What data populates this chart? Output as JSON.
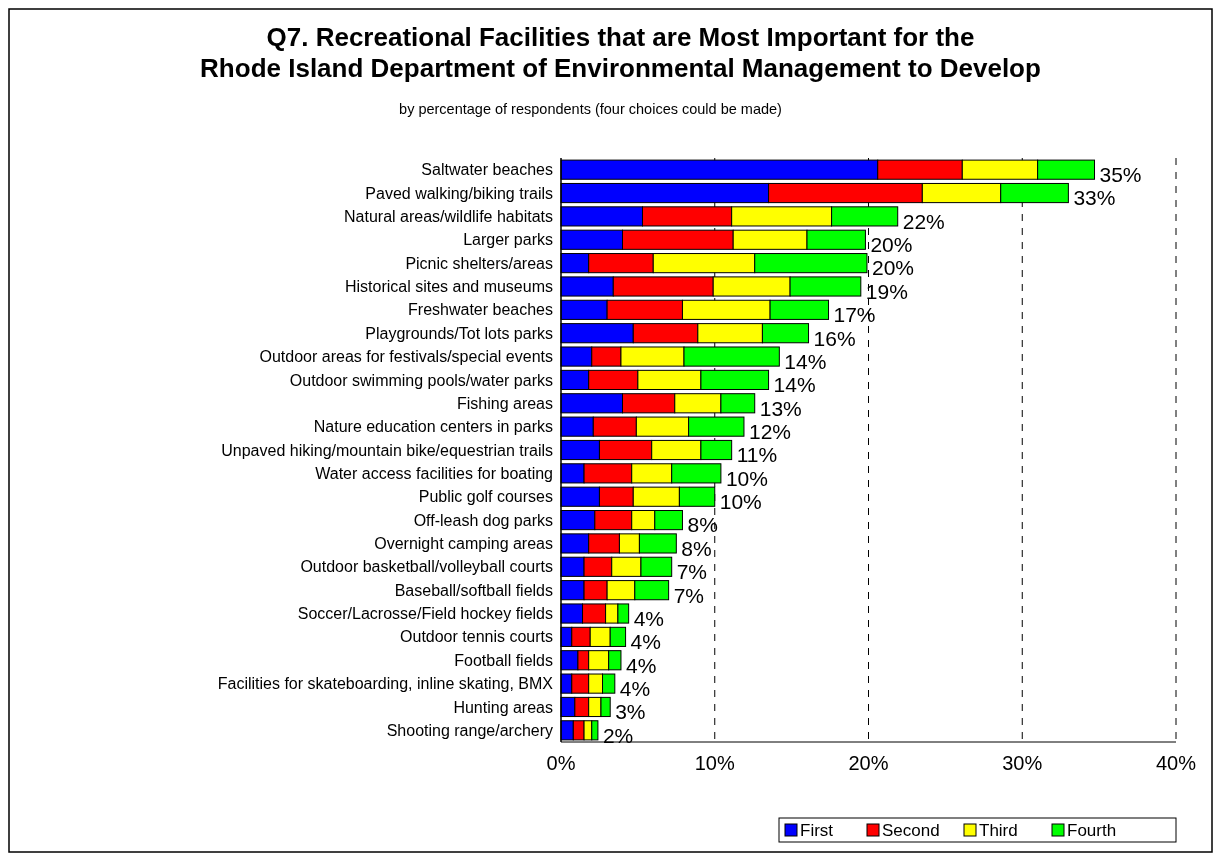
{
  "chart_data": {
    "type": "bar",
    "orientation": "horizontal",
    "stacked": true,
    "title": "Q7. Recreational Facilities that are Most Important for the Rhode Island Department of Environmental Management to Develop",
    "subtitle": "by percentage of respondents (four choices could be made)",
    "categories": [
      "Saltwater beaches",
      "Paved walking/biking trails",
      "Natural areas/wildlife habitats",
      "Larger parks",
      "Picnic shelters/areas",
      "Historical sites and museums",
      "Freshwater beaches",
      "Playgrounds/Tot lots parks",
      "Outdoor areas for festivals/special events",
      "Outdoor swimming pools/water parks",
      "Fishing areas",
      "Nature education centers in parks",
      "Unpaved hiking/mountain bike/equestrian trails",
      "Water access facilities for boating",
      "Public golf courses",
      "Off-leash dog parks",
      "Overnight camping areas",
      "Outdoor basketball/volleyball courts",
      "Baseball/softball fields",
      "Soccer/Lacrosse/Field hockey fields",
      "Outdoor tennis courts",
      "Football fields",
      "Facilities for skateboarding, inline skating, BMX",
      "Hunting areas",
      "Shooting range/archery"
    ],
    "series": [
      {
        "name": "First",
        "color": "#0000ff",
        "values": [
          20.6,
          13.5,
          5.3,
          4.0,
          1.8,
          3.4,
          3.0,
          4.7,
          2.0,
          1.8,
          4.0,
          2.1,
          2.5,
          1.5,
          2.5,
          2.2,
          1.8,
          1.5,
          1.5,
          1.4,
          0.7,
          1.1,
          0.7,
          0.9,
          0.8
        ]
      },
      {
        "name": "Second",
        "color": "#ff0000",
        "values": [
          5.5,
          10.0,
          5.8,
          7.2,
          4.2,
          6.5,
          4.9,
          4.2,
          1.9,
          3.2,
          3.4,
          2.8,
          3.4,
          3.1,
          2.2,
          2.4,
          2.0,
          1.8,
          1.5,
          1.5,
          1.2,
          0.7,
          1.1,
          0.9,
          0.7
        ]
      },
      {
        "name": "Third",
        "color": "#ffff00",
        "values": [
          4.9,
          5.1,
          6.5,
          4.8,
          6.6,
          5.0,
          5.7,
          4.2,
          4.1,
          4.1,
          3.0,
          3.4,
          3.2,
          2.6,
          3.0,
          1.5,
          1.3,
          1.9,
          1.8,
          0.8,
          1.3,
          1.3,
          0.9,
          0.8,
          0.5
        ]
      },
      {
        "name": "Fourth",
        "color": "#00ff00",
        "values": [
          3.7,
          4.4,
          4.3,
          3.8,
          7.3,
          4.6,
          3.8,
          3.0,
          6.2,
          4.4,
          2.2,
          3.6,
          2.0,
          3.2,
          2.3,
          1.8,
          2.4,
          2.0,
          2.2,
          0.7,
          1.0,
          0.8,
          0.8,
          0.6,
          0.4
        ]
      }
    ],
    "totals": [
      "35%",
      "33%",
      "22%",
      "20%",
      "20%",
      "19%",
      "17%",
      "16%",
      "14%",
      "14%",
      "13%",
      "12%",
      "11%",
      "10%",
      "10%",
      "8%",
      "8%",
      "7%",
      "7%",
      "4%",
      "4%",
      "4%",
      "4%",
      "3%",
      "2%"
    ],
    "xlim": [
      0,
      40
    ],
    "xticks": [
      {
        "value": 0,
        "label": "0%"
      },
      {
        "value": 10,
        "label": "10%"
      },
      {
        "value": 20,
        "label": "20%"
      },
      {
        "value": 30,
        "label": "30%"
      },
      {
        "value": 40,
        "label": "40%"
      }
    ],
    "grid": "x",
    "legend": "bottom right"
  }
}
